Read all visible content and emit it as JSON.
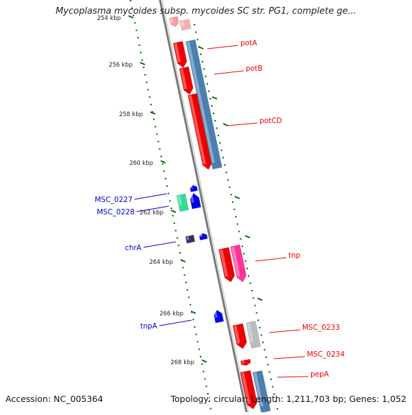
{
  "title": "Mycoplasma mycoides subsp. mycoides SC str. PG1, complete ge...",
  "footer": {
    "accession": "Accession: NC_005364",
    "summary": "Topology: circular; Length: 1,211,703 bp; Genes: 1,052"
  },
  "ruler_ticks": [
    "254 kbp",
    "256 kbp",
    "258 kbp",
    "260 kbp",
    "262 kbp",
    "264 kbp",
    "266 kbp",
    "268 kbp"
  ],
  "labels": [
    {
      "text": "potA",
      "side": "right",
      "color": "#ee0000"
    },
    {
      "text": "potB",
      "side": "right",
      "color": "#ee0000"
    },
    {
      "text": "potCD",
      "side": "right",
      "color": "#ee0000"
    },
    {
      "text": "MSC_0227",
      "side": "left",
      "color": "#0000cc"
    },
    {
      "text": "MSC_0228",
      "side": "left",
      "color": "#0000cc"
    },
    {
      "text": "chrA",
      "side": "left",
      "color": "#0000cc"
    },
    {
      "text": "tnp",
      "side": "right",
      "color": "#ee0000"
    },
    {
      "text": "tnpA",
      "side": "left",
      "color": "#0000cc"
    },
    {
      "text": "MSC_0233",
      "side": "right",
      "color": "#ee0000"
    },
    {
      "text": "MSC_0234",
      "side": "right",
      "color": "#ee0000"
    },
    {
      "text": "pepA",
      "side": "right",
      "color": "#ee0000"
    }
  ],
  "colors": {
    "forward": "#ee0000",
    "reverse": "#0000ee",
    "ruler": "#006600",
    "backbone": "#888888",
    "cds_blue": "#4a7fb0",
    "cds_green": "#33dd99",
    "cds_pink": "#ff3399",
    "cds_gray": "#bbbbbb",
    "cds_purple": "#33336b"
  }
}
